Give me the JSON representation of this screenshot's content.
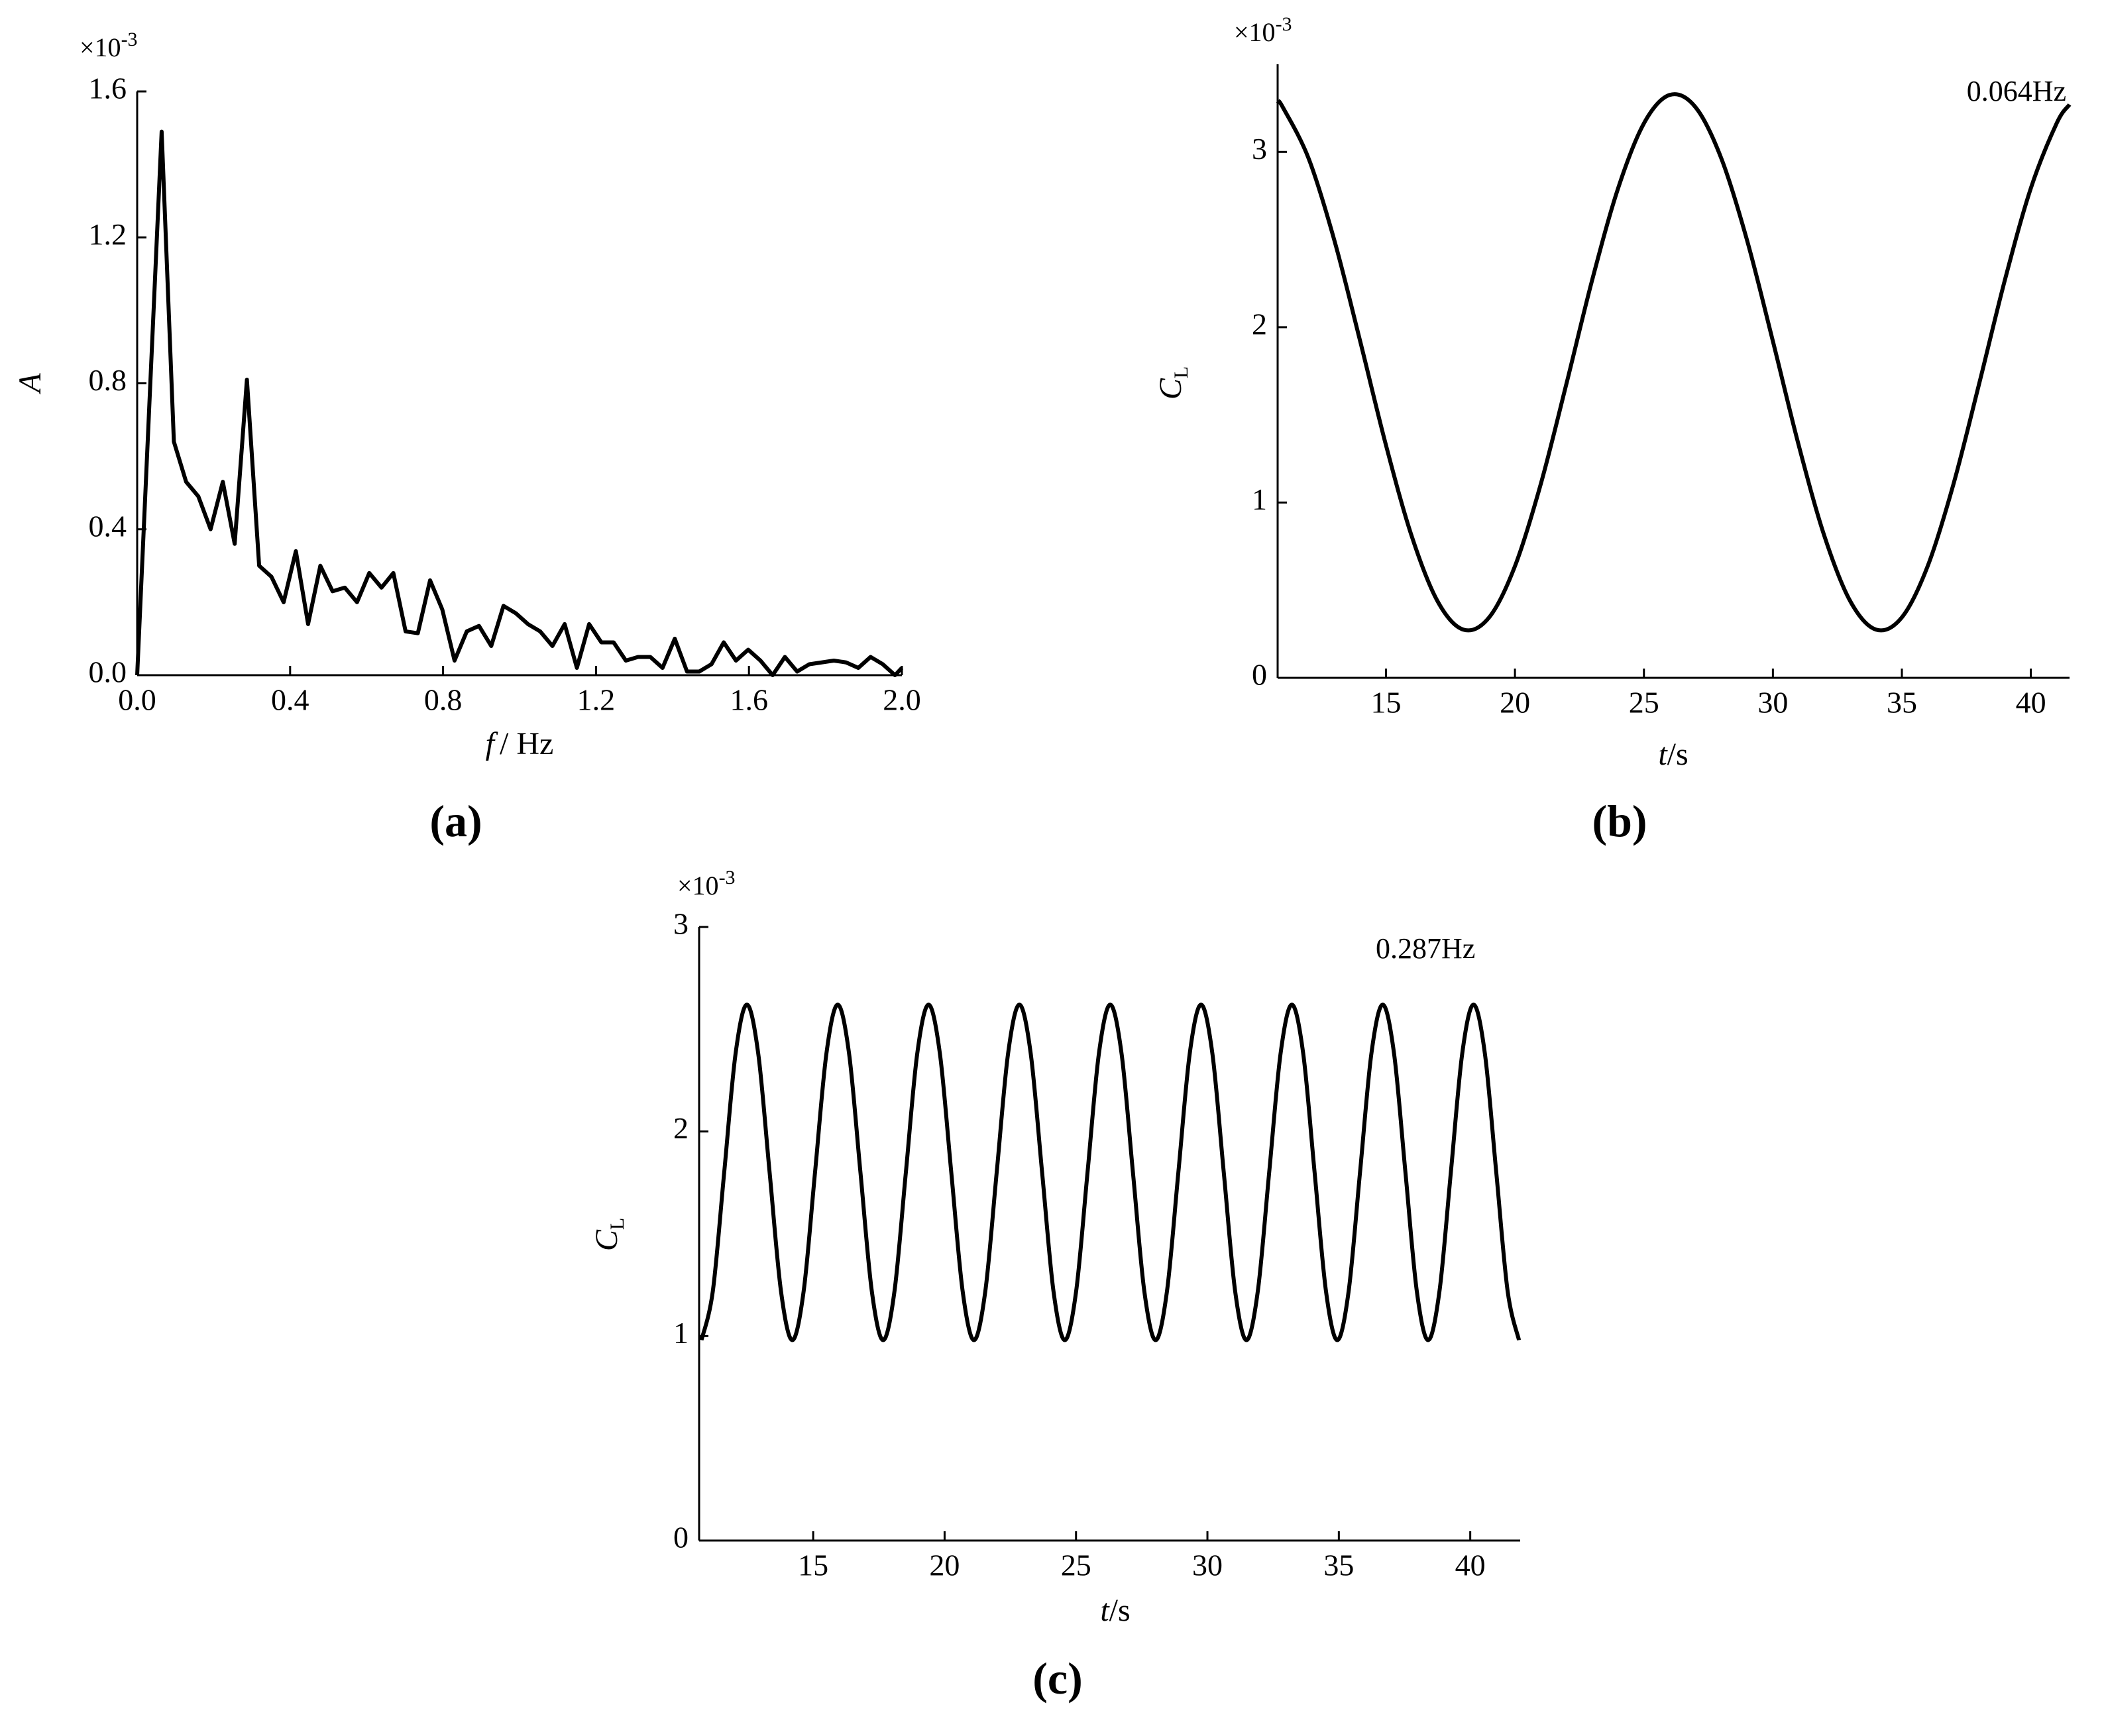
{
  "chart_data": [
    {
      "type": "line",
      "panel_label": "(a)",
      "y_label": {
        "symbol": "A"
      },
      "x_label": {
        "symbol": "f",
        "unit": "/ Hz"
      },
      "y_multiplier": {
        "base": "×10",
        "exponent": "-3"
      },
      "xlim": [
        0,
        2.0
      ],
      "ylim": [
        0,
        1.6
      ],
      "xticks": [
        {
          "value": 0,
          "label": "0.0"
        },
        0.4,
        0.8,
        1.2,
        1.6,
        {
          "value": 2.0,
          "label": "2.0"
        }
      ],
      "yticks": [
        {
          "value": 0,
          "label": "0.0"
        },
        0.4,
        0.8,
        1.2,
        1.6
      ],
      "color": "#000000",
      "x": [
        0,
        0.064,
        0.096,
        0.128,
        0.16,
        0.192,
        0.224,
        0.255,
        0.287,
        0.319,
        0.351,
        0.383,
        0.415,
        0.447,
        0.479,
        0.511,
        0.543,
        0.575,
        0.607,
        0.639,
        0.67,
        0.702,
        0.734,
        0.766,
        0.798,
        0.83,
        0.862,
        0.894,
        0.926,
        0.958,
        0.99,
        1.022,
        1.054,
        1.086,
        1.118,
        1.15,
        1.182,
        1.214,
        1.246,
        1.278,
        1.31,
        1.342,
        1.374,
        1.406,
        1.438,
        1.47,
        1.502,
        1.534,
        1.566,
        1.598,
        1.63,
        1.662,
        1.694,
        1.726,
        1.758,
        1.79,
        1.822,
        1.854,
        1.886,
        1.918,
        1.95,
        1.982,
        2.0
      ],
      "values": [
        0,
        1.49,
        0.64,
        0.53,
        0.49,
        0.4,
        0.53,
        0.36,
        0.81,
        0.3,
        0.27,
        0.2,
        0.34,
        0.14,
        0.3,
        0.23,
        0.24,
        0.2,
        0.28,
        0.24,
        0.28,
        0.12,
        0.115,
        0.26,
        0.18,
        0.04,
        0.12,
        0.135,
        0.08,
        0.19,
        0.17,
        0.14,
        0.12,
        0.08,
        0.14,
        0.02,
        0.14,
        0.09,
        0.09,
        0.04,
        0.05,
        0.05,
        0.02,
        0.1,
        0.01,
        0.01,
        0.03,
        0.09,
        0.04,
        0.07,
        0.04,
        0.0,
        0.05,
        0.01,
        0.03,
        0.035,
        0.04,
        0.035,
        0.02,
        0.05,
        0.03,
        0.0,
        0.02
      ]
    },
    {
      "type": "line",
      "panel_label": "(b)",
      "y_label": {
        "symbol": "C",
        "subscript": "L"
      },
      "x_label": {
        "symbol": "t",
        "unit": "/s"
      },
      "y_multiplier": {
        "base": "×10",
        "exponent": "-3"
      },
      "annotation": "0.064Hz",
      "xlim": [
        10.8,
        41.5
      ],
      "ylim": [
        0,
        3.5
      ],
      "xticks": [
        15,
        20,
        25,
        30,
        35,
        40
      ],
      "yticks": [
        0,
        1,
        2,
        3
      ],
      "color": "#000000",
      "x": [
        10.8,
        11,
        12,
        13,
        14,
        15,
        16,
        17,
        18,
        19,
        20,
        21,
        22,
        23,
        24,
        25,
        26,
        27,
        28,
        29,
        30,
        31,
        32,
        33,
        34,
        35,
        36,
        37,
        38,
        39,
        40,
        41,
        41.5
      ],
      "values": [
        3.29,
        3.255,
        2.963,
        2.495,
        1.92,
        1.327,
        0.807,
        0.437,
        0.275,
        0.345,
        0.637,
        1.105,
        1.68,
        2.273,
        2.793,
        3.163,
        3.325,
        3.255,
        2.963,
        2.495,
        1.92,
        1.327,
        0.807,
        0.437,
        0.275,
        0.345,
        0.637,
        1.105,
        1.68,
        2.273,
        2.793,
        3.163,
        3.27
      ]
    },
    {
      "type": "line",
      "panel_label": "(c)",
      "y_label": {
        "symbol": "C",
        "subscript": "L"
      },
      "x_label": {
        "symbol": "t",
        "unit": "/s"
      },
      "y_multiplier": {
        "base": "×10",
        "exponent": "-3"
      },
      "annotation": "0.287Hz",
      "xlim": [
        10.66,
        41.9
      ],
      "ylim": [
        0,
        3
      ],
      "xticks": [
        15,
        20,
        25,
        30,
        35,
        40
      ],
      "yticks": [
        0,
        1,
        2,
        3
      ],
      "color": "#000000",
      "x": [
        10.75,
        11.182,
        11.614,
        12.046,
        12.478,
        12.91,
        13.342,
        13.774,
        14.206,
        14.638,
        15.07,
        15.502,
        15.934,
        16.366,
        16.798,
        17.23,
        17.662,
        18.094,
        18.526,
        18.958,
        19.39,
        19.822,
        20.254,
        20.686,
        21.118,
        21.55,
        21.982,
        22.414,
        22.846,
        23.278,
        23.71,
        24.142,
        24.574,
        25.006,
        25.438,
        25.87,
        26.302,
        26.734,
        27.166,
        27.598,
        28.03,
        28.462,
        28.894,
        29.326,
        29.758,
        30.19,
        30.622,
        31.054,
        31.486,
        31.918,
        32.35,
        32.782,
        33.214,
        33.646,
        34.078,
        34.51,
        34.942,
        35.374,
        35.806,
        36.238,
        36.67,
        37.102,
        37.534,
        37.966,
        38.398,
        38.83,
        39.262,
        39.694,
        40.126,
        40.558,
        40.99,
        41.422,
        41.854
      ],
      "values": [
        0.98,
        1.22,
        1.8,
        2.38,
        2.62,
        2.38,
        1.8,
        1.22,
        0.98,
        1.22,
        1.8,
        2.38,
        2.62,
        2.38,
        1.8,
        1.22,
        0.98,
        1.22,
        1.8,
        2.38,
        2.62,
        2.38,
        1.8,
        1.22,
        0.98,
        1.22,
        1.8,
        2.38,
        2.62,
        2.38,
        1.8,
        1.22,
        0.98,
        1.22,
        1.8,
        2.38,
        2.62,
        2.38,
        1.8,
        1.22,
        0.98,
        1.22,
        1.8,
        2.38,
        2.62,
        2.38,
        1.8,
        1.22,
        0.98,
        1.22,
        1.8,
        2.38,
        2.62,
        2.38,
        1.8,
        1.22,
        0.98,
        1.22,
        1.8,
        2.38,
        2.62,
        2.38,
        1.8,
        1.22,
        0.98,
        1.22,
        1.8,
        2.38,
        2.62,
        2.38,
        1.8,
        1.22,
        0.98
      ]
    }
  ]
}
